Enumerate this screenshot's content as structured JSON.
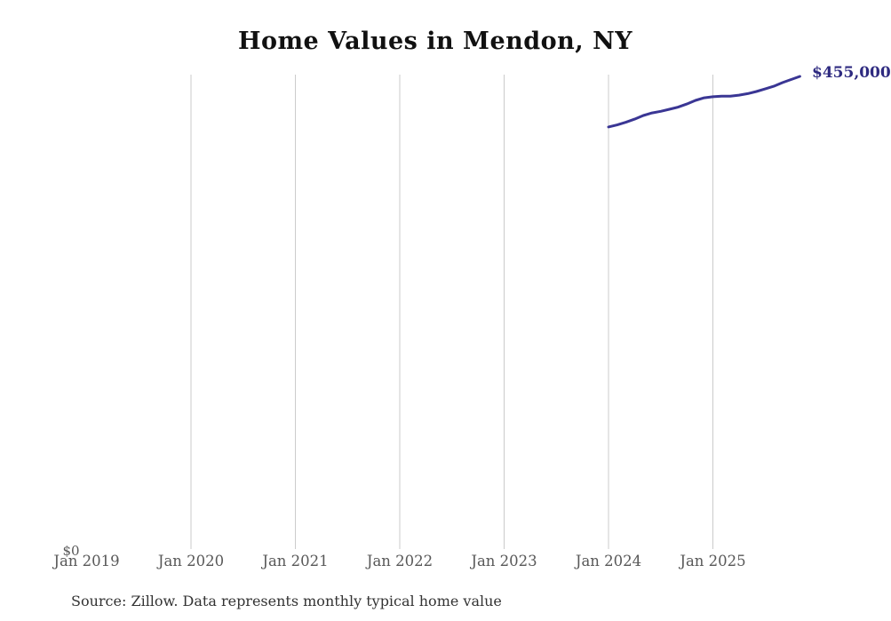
{
  "chart_data": {
    "type": "line",
    "title": "Home Values in Mendon, NY",
    "x": [
      "Jan 2024",
      "Feb 2024",
      "Mar 2024",
      "Apr 2024",
      "May 2024",
      "Jun 2024",
      "Jul 2024",
      "Aug 2024",
      "Sep 2024",
      "Oct 2024",
      "Nov 2024",
      "Dec 2024",
      "Jan 2025",
      "Feb 2025",
      "Mar 2025",
      "Apr 2025",
      "May 2025",
      "Jun 2025",
      "Jul 2025",
      "Aug 2025",
      "Sep 2025",
      "Oct 2025",
      "Nov 2025"
    ],
    "values": [
      406500,
      408500,
      411000,
      414000,
      417500,
      420000,
      421500,
      423500,
      425500,
      428500,
      432000,
      434500,
      435500,
      436000,
      436000,
      437000,
      438500,
      440500,
      443000,
      445500,
      449000,
      452000,
      455000
    ],
    "latest_value": 455000,
    "end_label": "$455,000",
    "xlabel": "",
    "ylabel": "",
    "y_axis": {
      "min": 0,
      "zero_label": "$0",
      "unit": "USD"
    },
    "x_ticks": [
      {
        "label": "Jan 2019",
        "gridline": false
      },
      {
        "label": "Jan 2020",
        "gridline": true
      },
      {
        "label": "Jan 2021",
        "gridline": true
      },
      {
        "label": "Jan 2022",
        "gridline": true
      },
      {
        "label": "Jan 2023",
        "gridline": true
      },
      {
        "label": "Jan 2024",
        "gridline": true
      },
      {
        "label": "Jan 2025",
        "gridline": true
      }
    ],
    "grid": "vertical-only",
    "legend": "none",
    "source": "Source: Zillow. Data represents monthly typical home value"
  },
  "colors": {
    "line": "#3a3694",
    "value_label": "#2e2a80",
    "grid": "#cbcbcb",
    "title": "#111111",
    "axis_text": "#585858",
    "source_text": "#333333"
  }
}
